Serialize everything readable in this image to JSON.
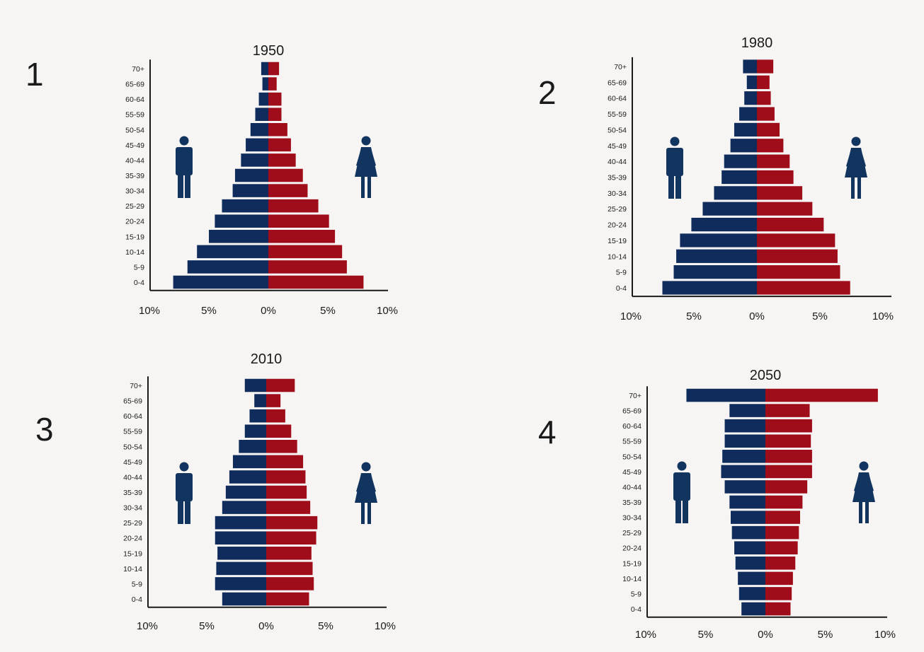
{
  "colors": {
    "male": "#0f2c5c",
    "female": "#a00d1a",
    "axis": "#1a1a1a",
    "icon": "#12355f"
  },
  "icons": {
    "male": "man-icon",
    "female": "woman-icon"
  },
  "panels": [
    {
      "number": "1"
    },
    {
      "number": "2"
    },
    {
      "number": "3"
    },
    {
      "number": "4"
    }
  ],
  "chart_data": [
    {
      "type": "bar",
      "subtype": "population-pyramid",
      "title": "1950",
      "categories": [
        "0-4",
        "5-9",
        "10-14",
        "15-19",
        "20-24",
        "25-29",
        "30-34",
        "35-39",
        "40-44",
        "45-49",
        "50-54",
        "55-59",
        "60-64",
        "65-69",
        "70+"
      ],
      "series": [
        {
          "side": "left",
          "values": [
            8.0,
            6.8,
            6.0,
            5.0,
            4.5,
            3.9,
            3.0,
            2.8,
            2.3,
            1.9,
            1.5,
            1.1,
            0.8,
            0.5,
            0.6
          ]
        },
        {
          "side": "right",
          "values": [
            8.0,
            6.6,
            6.2,
            5.6,
            5.1,
            4.2,
            3.3,
            2.9,
            2.3,
            1.9,
            1.6,
            1.1,
            1.1,
            0.7,
            0.9
          ]
        }
      ],
      "xticks": [
        "10%",
        "5%",
        "0%",
        "5%",
        "10%"
      ],
      "xlim": [
        -10,
        10
      ]
    },
    {
      "type": "bar",
      "subtype": "population-pyramid",
      "title": "1980",
      "categories": [
        "0-4",
        "5-9",
        "10-14",
        "15-19",
        "20-24",
        "25-29",
        "30-34",
        "35-39",
        "40-44",
        "45-49",
        "50-54",
        "55-59",
        "60-64",
        "65-69",
        "70+"
      ],
      "series": [
        {
          "side": "left",
          "values": [
            7.5,
            6.6,
            6.4,
            6.1,
            5.2,
            4.3,
            3.4,
            2.8,
            2.6,
            2.1,
            1.8,
            1.4,
            1.0,
            0.8,
            1.1
          ]
        },
        {
          "side": "right",
          "values": [
            7.4,
            6.6,
            6.4,
            6.2,
            5.3,
            4.4,
            3.6,
            2.9,
            2.6,
            2.1,
            1.8,
            1.4,
            1.1,
            1.0,
            1.3
          ]
        }
      ],
      "xticks": [
        "10%",
        "5%",
        "0%",
        "5%",
        "10%"
      ],
      "xlim": [
        -10,
        10
      ]
    },
    {
      "type": "bar",
      "subtype": "population-pyramid",
      "title": "2010",
      "categories": [
        "0-4",
        "5-9",
        "10-14",
        "15-19",
        "20-24",
        "25-29",
        "30-34",
        "35-39",
        "40-44",
        "45-49",
        "50-54",
        "55-59",
        "60-64",
        "65-69",
        "70+"
      ],
      "series": [
        {
          "side": "left",
          "values": [
            3.7,
            4.3,
            4.2,
            4.1,
            4.3,
            4.3,
            3.7,
            3.4,
            3.1,
            2.8,
            2.3,
            1.8,
            1.4,
            1.0,
            1.8
          ]
        },
        {
          "side": "right",
          "values": [
            3.6,
            4.0,
            3.9,
            3.8,
            4.2,
            4.3,
            3.7,
            3.4,
            3.3,
            3.1,
            2.6,
            2.1,
            1.6,
            1.2,
            2.4
          ]
        }
      ],
      "xticks": [
        "10%",
        "5%",
        "0%",
        "5%",
        "10%"
      ],
      "xlim": [
        -10,
        10
      ]
    },
    {
      "type": "bar",
      "subtype": "population-pyramid",
      "title": "2050",
      "categories": [
        "0-4",
        "5-9",
        "10-14",
        "15-19",
        "20-24",
        "25-29",
        "30-34",
        "35-39",
        "40-44",
        "45-49",
        "50-54",
        "55-59",
        "60-64",
        "65-69",
        "70+"
      ],
      "series": [
        {
          "side": "left",
          "values": [
            2.0,
            2.2,
            2.3,
            2.5,
            2.6,
            2.8,
            2.9,
            3.0,
            3.4,
            3.7,
            3.6,
            3.4,
            3.4,
            3.0,
            6.6
          ]
        },
        {
          "side": "right",
          "values": [
            2.1,
            2.2,
            2.3,
            2.5,
            2.7,
            2.8,
            2.9,
            3.1,
            3.5,
            3.9,
            3.9,
            3.8,
            3.9,
            3.7,
            9.4
          ]
        }
      ],
      "xticks": [
        "10%",
        "5%",
        "0%",
        "5%",
        "10%"
      ],
      "xlim": [
        -10,
        10
      ]
    }
  ]
}
